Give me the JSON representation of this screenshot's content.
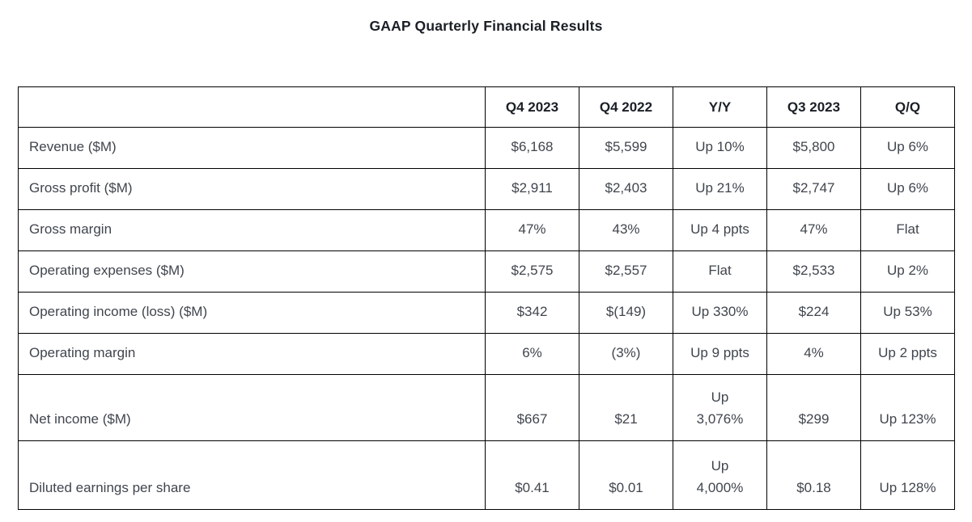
{
  "chart_data": {
    "type": "table",
    "title": "GAAP Quarterly Financial Results",
    "columns": [
      "",
      "Q4 2023",
      "Q4 2022",
      "Y/Y",
      "Q3 2023",
      "Q/Q"
    ],
    "rows": [
      {
        "label": "Revenue ($M)",
        "values": [
          "$6,168",
          "$5,599",
          "Up 10%",
          "$5,800",
          "Up 6%"
        ]
      },
      {
        "label": "Gross profit ($M)",
        "values": [
          "$2,911",
          "$2,403",
          "Up 21%",
          "$2,747",
          "Up 6%"
        ]
      },
      {
        "label": "Gross margin",
        "values": [
          "47%",
          "43%",
          "Up 4 ppts",
          "47%",
          "Flat"
        ]
      },
      {
        "label": "Operating expenses ($M)",
        "values": [
          "$2,575",
          "$2,557",
          "Flat",
          "$2,533",
          "Up 2%"
        ]
      },
      {
        "label": "Operating income (loss) ($M)",
        "values": [
          "$342",
          "$(149)",
          "Up 330%",
          "$224",
          "Up 53%"
        ]
      },
      {
        "label": "Operating margin",
        "values": [
          "6%",
          "(3%)",
          "Up 9 ppts",
          "4%",
          "Up 2 ppts"
        ]
      },
      {
        "label": "Net income ($M)",
        "values": [
          "$667",
          "$21",
          "Up\n3,076%",
          "$299",
          "Up 123%"
        ]
      },
      {
        "label": "Diluted earnings per share",
        "values": [
          "$0.41",
          "$0.01",
          "Up\n4,000%",
          "$0.18",
          "Up 128%"
        ]
      }
    ]
  },
  "colors": {
    "border": "#000000",
    "body_text": "#40454d",
    "heading_text": "#1b1f26",
    "background": "#ffffff"
  }
}
